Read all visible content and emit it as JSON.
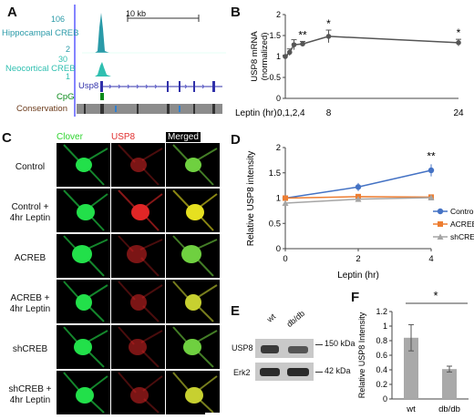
{
  "panels": {
    "A": {
      "label": "A",
      "scale_bar": "10 kb",
      "tracks": [
        {
          "name": "Hippocampal CREB",
          "max": "106",
          "min": "2",
          "color": "#2a9aa8"
        },
        {
          "name": "Neocortical CREB",
          "max": "30",
          "min": "1",
          "color": "#2fbfb0"
        }
      ],
      "gene": "Usp8",
      "cpg": "CpG",
      "conservation": "Conservation"
    },
    "B": {
      "label": "B"
    },
    "C": {
      "label": "C",
      "columns": [
        "Clover",
        "USP8",
        "Merged"
      ],
      "rows": [
        "Control",
        "Control +\n4hr Leptin",
        "ACREB",
        "ACREB +\n4hr Leptin",
        "shCREB",
        "shCREB +\n4hr Leptin"
      ]
    },
    "D": {
      "label": "D"
    },
    "E": {
      "label": "E",
      "lanes": [
        "wt",
        "db/db"
      ],
      "bands": [
        {
          "name": "USP8",
          "size": "150 kDa"
        },
        {
          "name": "Erk2",
          "size": "42 kDa"
        }
      ]
    },
    "F": {
      "label": "F"
    }
  },
  "chart_data": [
    {
      "panel": "B",
      "type": "line",
      "xlabel": "Leptin (hr):",
      "x_tick_labels": [
        "0,1,2,4",
        "8",
        "24"
      ],
      "ylabel": "USP8 mRNA\n(normalized)",
      "ylim": [
        0,
        2
      ],
      "yticks": [
        0,
        0.5,
        1,
        1.5,
        2
      ],
      "x": [
        0,
        1,
        2,
        4,
        8,
        24
      ],
      "x_display_positions": [
        0,
        0.6,
        1.2,
        2.4,
        6,
        24
      ],
      "values": [
        1.0,
        1.1,
        1.28,
        1.3,
        1.48,
        1.33
      ],
      "errors": [
        0.03,
        0.08,
        0.12,
        0.06,
        0.15,
        0.08
      ],
      "annotations": [
        "",
        "",
        "",
        "**",
        "*",
        "*"
      ],
      "color": "#555555"
    },
    {
      "panel": "D",
      "type": "line",
      "xlabel": "Leptin (hr)",
      "ylabel": "Relative USP8 intensity",
      "xlim": [
        0,
        4
      ],
      "ylim": [
        0,
        2
      ],
      "xticks": [
        0,
        2,
        4
      ],
      "yticks": [
        0,
        0.5,
        1,
        1.5,
        2
      ],
      "x": [
        0,
        2,
        4
      ],
      "legend_position": "right",
      "series": [
        {
          "name": "Control",
          "values": [
            1.0,
            1.22,
            1.55
          ],
          "errors": [
            0.05,
            0.08,
            0.12
          ],
          "color": "#4472c4",
          "marker": "circle"
        },
        {
          "name": "ACREB",
          "values": [
            1.0,
            1.03,
            1.02
          ],
          "errors": [
            0.03,
            0.04,
            0.03
          ],
          "color": "#ed7d31",
          "marker": "square"
        },
        {
          "name": "shCREB",
          "values": [
            0.9,
            0.98,
            1.01
          ],
          "errors": [
            0.03,
            0.03,
            0.03
          ],
          "color": "#a5a5a5",
          "marker": "triangle"
        }
      ],
      "annotations": [
        {
          "x": 4,
          "text": "**"
        }
      ]
    },
    {
      "panel": "F",
      "type": "bar",
      "categories": [
        "wt",
        "db/db"
      ],
      "values": [
        0.84,
        0.41
      ],
      "errors": [
        0.18,
        0.04
      ],
      "ylabel": "Relative USP8 Intensity",
      "ylim": [
        0,
        1.2
      ],
      "yticks": [
        0,
        0.2,
        0.4,
        0.6,
        0.8,
        1,
        1.2
      ],
      "significance": "*",
      "color": "#a9a9a9"
    }
  ]
}
